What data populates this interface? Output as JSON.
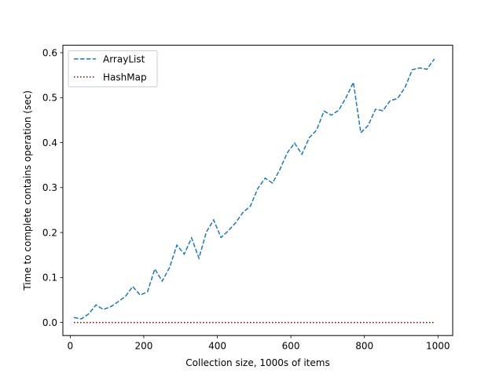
{
  "chart_data": {
    "type": "line",
    "xlabel": "Collection size, 1000s of items",
    "ylabel": "Time to complete contains operation (sec)",
    "xlim": [
      -20,
      1040
    ],
    "ylim": [
      -0.029,
      0.6165
    ],
    "xticks": [
      0,
      200,
      400,
      600,
      800,
      1000
    ],
    "yticks": [
      0.0,
      0.1,
      0.2,
      0.3,
      0.4,
      0.5,
      0.6
    ],
    "xtick_labels": [
      "0",
      "200",
      "400",
      "600",
      "800",
      "1000"
    ],
    "ytick_labels": [
      "0.0",
      "0.1",
      "0.2",
      "0.3",
      "0.4",
      "0.5",
      "0.6"
    ],
    "grid": false,
    "legend_position": "top-left",
    "series": [
      {
        "name": "ArrayList",
        "color": "#1f77b4",
        "style": "dashed",
        "x": [
          10,
          30,
          50,
          70,
          90,
          110,
          130,
          150,
          170,
          190,
          210,
          230,
          250,
          270,
          290,
          310,
          330,
          350,
          370,
          390,
          410,
          430,
          450,
          470,
          490,
          510,
          530,
          550,
          570,
          590,
          610,
          630,
          650,
          670,
          690,
          710,
          730,
          750,
          770,
          790,
          810,
          830,
          850,
          870,
          890,
          910,
          930,
          950,
          970,
          990
        ],
        "y": [
          0.011,
          0.008,
          0.019,
          0.039,
          0.029,
          0.035,
          0.046,
          0.058,
          0.08,
          0.061,
          0.068,
          0.119,
          0.092,
          0.122,
          0.172,
          0.152,
          0.188,
          0.143,
          0.201,
          0.228,
          0.189,
          0.204,
          0.222,
          0.245,
          0.259,
          0.298,
          0.321,
          0.31,
          0.34,
          0.377,
          0.399,
          0.374,
          0.411,
          0.428,
          0.47,
          0.461,
          0.472,
          0.5,
          0.534,
          0.422,
          0.438,
          0.474,
          0.471,
          0.493,
          0.498,
          0.522,
          0.562,
          0.566,
          0.563,
          0.586
        ]
      },
      {
        "name": "HashMap",
        "color": "#8b0000",
        "style": "dotted",
        "x": [
          10,
          30,
          50,
          70,
          90,
          110,
          130,
          150,
          170,
          190,
          210,
          230,
          250,
          270,
          290,
          310,
          330,
          350,
          370,
          390,
          410,
          430,
          450,
          470,
          490,
          510,
          530,
          550,
          570,
          590,
          610,
          630,
          650,
          670,
          690,
          710,
          730,
          750,
          770,
          790,
          810,
          830,
          850,
          870,
          890,
          910,
          930,
          950,
          970,
          990
        ],
        "y": [
          0.0,
          0.0,
          0.0,
          0.0,
          0.0,
          0.0,
          0.0,
          0.0,
          0.0,
          0.0,
          0.0,
          0.0,
          0.0,
          0.0,
          0.0,
          0.0,
          0.0,
          0.0,
          0.0,
          0.0,
          0.0,
          0.0,
          0.0,
          0.0,
          0.0,
          0.0,
          0.0,
          0.0,
          0.0,
          0.0,
          0.0,
          0.0,
          0.0,
          0.0,
          0.0,
          0.0,
          0.0,
          0.0,
          0.0,
          0.0,
          0.0,
          0.0,
          0.0,
          0.0,
          0.0,
          0.0,
          0.0,
          0.0,
          0.0,
          0.0
        ]
      }
    ]
  }
}
